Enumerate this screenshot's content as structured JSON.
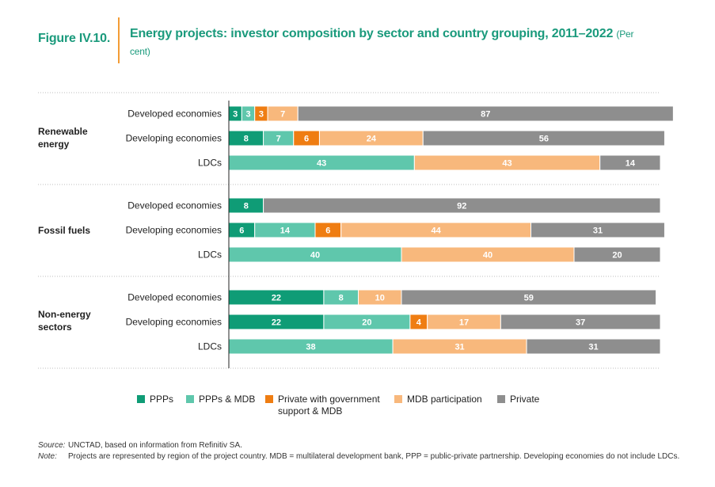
{
  "figure": {
    "label": "Figure IV.10.",
    "title": "Energy projects: investor composition by sector and country grouping, 2011–2022",
    "subtitle": "(Per cent)"
  },
  "chart_data": {
    "type": "bar",
    "orientation": "horizontal",
    "stacked": true,
    "unit": "Per cent",
    "xlim": [
      0,
      100
    ],
    "title": "Energy projects: investor composition by sector and country grouping, 2011–2022",
    "groups": [
      {
        "name": "Renewable energy",
        "rows": [
          {
            "label": "Developed economies",
            "values": [
              3,
              3,
              3,
              7,
              87
            ]
          },
          {
            "label": "Developing economies",
            "values": [
              8,
              7,
              6,
              24,
              56
            ]
          },
          {
            "label": "LDCs",
            "values": [
              0,
              43,
              0,
              43,
              14
            ]
          }
        ]
      },
      {
        "name": "Fossil fuels",
        "rows": [
          {
            "label": "Developed economies",
            "values": [
              8,
              0,
              0,
              0,
              92
            ]
          },
          {
            "label": "Developing economies",
            "values": [
              6,
              14,
              6,
              44,
              31
            ]
          },
          {
            "label": "LDCs",
            "values": [
              0,
              40,
              0,
              40,
              20
            ]
          }
        ]
      },
      {
        "name": "Non-energy sectors",
        "rows": [
          {
            "label": "Developed economies",
            "values": [
              22,
              8,
              0,
              10,
              59
            ]
          },
          {
            "label": "Developing economies",
            "values": [
              22,
              20,
              4,
              17,
              37
            ]
          },
          {
            "label": "LDCs",
            "values": [
              0,
              38,
              0,
              31,
              31
            ]
          }
        ]
      }
    ],
    "series": [
      {
        "name": "PPPs",
        "color": "#0f9c76"
      },
      {
        "name": "PPPs & MDB",
        "color": "#5fc7ac"
      },
      {
        "name": "Private with government support & MDB",
        "color": "#ef7d12"
      },
      {
        "name": "MDB participation",
        "color": "#f8b87c"
      },
      {
        "name": "Private",
        "color": "#8e8e8e"
      }
    ]
  },
  "legend": [
    {
      "label": "PPPs",
      "color": "#0f9c76"
    },
    {
      "label": "PPPs & MDB",
      "color": "#5fc7ac"
    },
    {
      "label": "Private with government",
      "label2": "support & MDB",
      "color": "#ef7d12"
    },
    {
      "label": "MDB participation",
      "color": "#f8b87c"
    },
    {
      "label": "Private",
      "color": "#8e8e8e"
    }
  ],
  "notes": {
    "source_key": "Source:",
    "source_text": "UNCTAD, based on information from Refinitiv SA.",
    "note_key": "Note:",
    "note_text": "Projects are represented by region of the project country. MDB = multilateral development bank, PPP = public-private partnership. Developing economies do not include LDCs."
  }
}
